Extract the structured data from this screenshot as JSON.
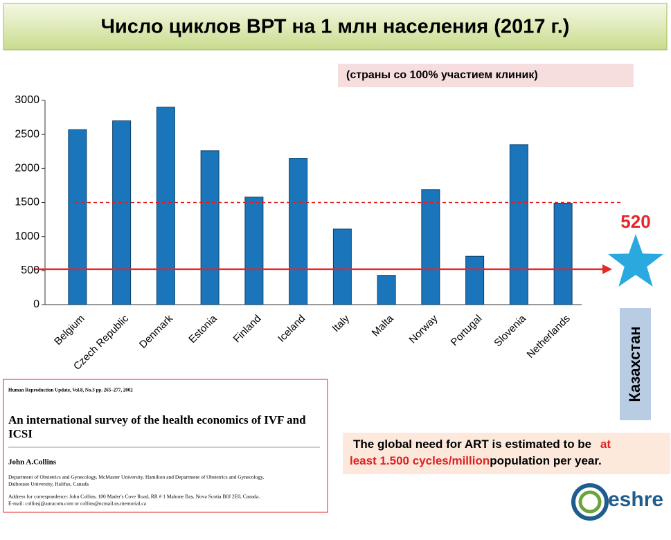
{
  "slide": {
    "title": "Число циклов ВРТ на 1 млн населения (2017 г.)",
    "subtitle": "(страны со 100% участием клиник)",
    "note": [
      "The global need for ART is estimated to be ",
      "at least 1.500 cycles/million",
      "population per year."
    ],
    "logo": "eshre"
  },
  "paper": {
    "journal": "Human Reproduction Update, Vol.8, No.3 pp. 265–277, 2002",
    "title": [
      "An international survey of the health economics of IVF and",
      "ICSI"
    ],
    "author": "John A.Collins",
    "affiliation": [
      "Department of Obstetrics and Gynecology, McMaster University, Hamilton and Department of Obstetrics and Gynecology,",
      "Dalhousie University, Halifax, Canada"
    ],
    "address": [
      "Address for correspondence: John Collins, 100 Mader's Cove Road, RR # 1 Mahone Bay, Nova Scotia B0J 2E0, Canada.",
      "E-mail: collinsj@auracom.com or collins@ncmail.ns.memorial.ca"
    ]
  },
  "chart_data": {
    "type": "bar",
    "categories": [
      "Belgium",
      "Czech Republic",
      "Denmark",
      "Estonia",
      "Finland",
      "Iceland",
      "Italy",
      "Malta",
      "Norway",
      "Portugal",
      "Slovenia",
      "Netherlands"
    ],
    "values": [
      2570,
      2700,
      2900,
      2260,
      1580,
      2150,
      1110,
      430,
      1690,
      710,
      2350,
      1490
    ],
    "color": "#1a75bb",
    "ylim": [
      0,
      3000
    ],
    "yticks": [
      0,
      500,
      1000,
      1500,
      2000,
      2500,
      3000
    ],
    "reference_line": {
      "value": 1500,
      "color": "#e02020"
    },
    "highlight": {
      "name": "Казахстан",
      "value": 520,
      "color": "#e8262a",
      "marker_color": "#2aa8e0"
    }
  }
}
